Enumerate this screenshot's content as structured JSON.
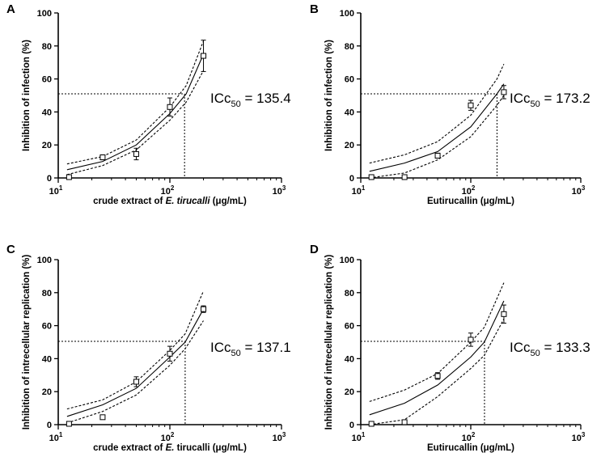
{
  "chart_data": [
    {
      "panel": "A",
      "type": "scatter",
      "xscale": "log",
      "xlim": [
        10,
        1000
      ],
      "ylim": [
        0,
        100
      ],
      "xticks": [
        {
          "value": 10,
          "exp": "1"
        },
        {
          "value": 100,
          "exp": "2"
        },
        {
          "value": 1000,
          "exp": "3"
        }
      ],
      "yticks": [
        0,
        20,
        40,
        60,
        80,
        100
      ],
      "xlabel": {
        "pre": "crude extract of ",
        "italic": "E. tirucalli",
        "post": " (μg/mL)"
      },
      "ylabel": "Inhibition of infection (%)",
      "points": [
        {
          "x": 12.5,
          "y": 0.5,
          "err": 0
        },
        {
          "x": 25,
          "y": 12.5,
          "err": 1.5
        },
        {
          "x": 50,
          "y": 14.5,
          "err": 3.5
        },
        {
          "x": 100,
          "y": 43,
          "err": 5.5
        },
        {
          "x": 200,
          "y": 74,
          "err": 9.5
        }
      ],
      "fit": [
        {
          "x": 12,
          "y": 5
        },
        {
          "x": 25,
          "y": 10
        },
        {
          "x": 50,
          "y": 20
        },
        {
          "x": 100,
          "y": 39
        },
        {
          "x": 140,
          "y": 51
        },
        {
          "x": 200,
          "y": 75
        }
      ],
      "ci_upper": [
        {
          "x": 12,
          "y": 8.5
        },
        {
          "x": 25,
          "y": 13
        },
        {
          "x": 50,
          "y": 23
        },
        {
          "x": 100,
          "y": 43
        },
        {
          "x": 140,
          "y": 56
        },
        {
          "x": 200,
          "y": 83
        }
      ],
      "ci_lower": [
        {
          "x": 12,
          "y": 2
        },
        {
          "x": 25,
          "y": 7.5
        },
        {
          "x": 50,
          "y": 17
        },
        {
          "x": 100,
          "y": 35
        },
        {
          "x": 140,
          "y": 46
        },
        {
          "x": 200,
          "y": 65
        }
      ],
      "ic50": {
        "x": 135.4,
        "y": 51,
        "label_main": "ICc",
        "label_sub": "50",
        "label_value": " = 135.4"
      }
    },
    {
      "panel": "B",
      "type": "scatter",
      "xscale": "log",
      "xlim": [
        10,
        1000
      ],
      "ylim": [
        0,
        100
      ],
      "xticks": [
        {
          "value": 10,
          "exp": "1"
        },
        {
          "value": 100,
          "exp": "2"
        },
        {
          "value": 1000,
          "exp": "3"
        }
      ],
      "yticks": [
        0,
        20,
        40,
        60,
        80,
        100
      ],
      "xlabel": {
        "pre": "Eutirucallin (μg/mL)",
        "italic": "",
        "post": ""
      },
      "ylabel": "Inhibition of infection (%)",
      "points": [
        {
          "x": 12.5,
          "y": 0.5,
          "err": 0
        },
        {
          "x": 25,
          "y": 0.5,
          "err": 0
        },
        {
          "x": 50,
          "y": 13.5,
          "err": 1.5
        },
        {
          "x": 100,
          "y": 44,
          "err": 3
        },
        {
          "x": 200,
          "y": 52,
          "err": 4
        }
      ],
      "fit": [
        {
          "x": 12,
          "y": 4
        },
        {
          "x": 25,
          "y": 9
        },
        {
          "x": 50,
          "y": 16
        },
        {
          "x": 100,
          "y": 31
        },
        {
          "x": 173,
          "y": 51
        },
        {
          "x": 200,
          "y": 57
        }
      ],
      "ci_upper": [
        {
          "x": 12,
          "y": 9
        },
        {
          "x": 25,
          "y": 14
        },
        {
          "x": 50,
          "y": 22
        },
        {
          "x": 100,
          "y": 38
        },
        {
          "x": 173,
          "y": 60
        },
        {
          "x": 200,
          "y": 69
        }
      ],
      "ci_lower": [
        {
          "x": 12,
          "y": 0
        },
        {
          "x": 25,
          "y": 3
        },
        {
          "x": 50,
          "y": 11
        },
        {
          "x": 100,
          "y": 25
        },
        {
          "x": 173,
          "y": 44
        },
        {
          "x": 200,
          "y": 50
        }
      ],
      "ic50": {
        "x": 173.2,
        "y": 51,
        "label_main": "ICc",
        "label_sub": "50",
        "label_value": " = 173.2"
      }
    },
    {
      "panel": "C",
      "type": "scatter",
      "xscale": "log",
      "xlim": [
        10,
        1000
      ],
      "ylim": [
        0,
        100
      ],
      "xticks": [
        {
          "value": 10,
          "exp": "1"
        },
        {
          "value": 100,
          "exp": "2"
        },
        {
          "value": 1000,
          "exp": "3"
        }
      ],
      "yticks": [
        0,
        20,
        40,
        60,
        80,
        100
      ],
      "xlabel": {
        "pre": "crude extract of ",
        "italic": "E.",
        "post": " tirucalli (μg/mL)"
      },
      "ylabel": "Inhibition of intrecellular replication (%)",
      "points": [
        {
          "x": 12.5,
          "y": 0.5,
          "err": 0
        },
        {
          "x": 25,
          "y": 4.5,
          "err": 1
        },
        {
          "x": 50,
          "y": 26,
          "err": 3
        },
        {
          "x": 100,
          "y": 43,
          "err": 4.5
        },
        {
          "x": 200,
          "y": 70,
          "err": 2
        }
      ],
      "fit": [
        {
          "x": 12,
          "y": 5
        },
        {
          "x": 25,
          "y": 12
        },
        {
          "x": 50,
          "y": 22
        },
        {
          "x": 100,
          "y": 41
        },
        {
          "x": 137,
          "y": 50
        },
        {
          "x": 200,
          "y": 70
        }
      ],
      "ci_upper": [
        {
          "x": 12,
          "y": 9.5
        },
        {
          "x": 25,
          "y": 15
        },
        {
          "x": 50,
          "y": 26
        },
        {
          "x": 100,
          "y": 45
        },
        {
          "x": 137,
          "y": 55
        },
        {
          "x": 200,
          "y": 81
        }
      ],
      "ci_lower": [
        {
          "x": 12,
          "y": 1
        },
        {
          "x": 25,
          "y": 8
        },
        {
          "x": 50,
          "y": 18
        },
        {
          "x": 100,
          "y": 36
        },
        {
          "x": 137,
          "y": 46
        },
        {
          "x": 200,
          "y": 63
        }
      ],
      "ic50": {
        "x": 137.1,
        "y": 50.5,
        "label_main": "ICc",
        "label_sub": "50",
        "label_value": " = 137.1"
      }
    },
    {
      "panel": "D",
      "type": "scatter",
      "xscale": "log",
      "xlim": [
        10,
        1000
      ],
      "ylim": [
        0,
        100
      ],
      "xticks": [
        {
          "value": 10,
          "exp": "1"
        },
        {
          "value": 100,
          "exp": "2"
        },
        {
          "value": 1000,
          "exp": "3"
        }
      ],
      "yticks": [
        0,
        20,
        40,
        60,
        80,
        100
      ],
      "xlabel": {
        "pre": "Eutirucallin (μg/mL)",
        "italic": "",
        "post": ""
      },
      "ylabel": "Inhibition of intrecellular replication (%)",
      "points": [
        {
          "x": 12.5,
          "y": 0.5,
          "err": 0
        },
        {
          "x": 25,
          "y": 1.5,
          "err": 1
        },
        {
          "x": 50,
          "y": 29.5,
          "err": 2
        },
        {
          "x": 100,
          "y": 51.5,
          "err": 4
        },
        {
          "x": 200,
          "y": 67,
          "err": 5.5
        }
      ],
      "fit": [
        {
          "x": 12,
          "y": 6
        },
        {
          "x": 25,
          "y": 13
        },
        {
          "x": 50,
          "y": 24
        },
        {
          "x": 100,
          "y": 41
        },
        {
          "x": 133,
          "y": 50
        },
        {
          "x": 200,
          "y": 75
        }
      ],
      "ci_upper": [
        {
          "x": 12,
          "y": 14
        },
        {
          "x": 25,
          "y": 21
        },
        {
          "x": 50,
          "y": 31
        },
        {
          "x": 100,
          "y": 50
        },
        {
          "x": 133,
          "y": 59
        },
        {
          "x": 200,
          "y": 86
        }
      ],
      "ci_lower": [
        {
          "x": 12,
          "y": 0
        },
        {
          "x": 25,
          "y": 3
        },
        {
          "x": 50,
          "y": 17
        },
        {
          "x": 100,
          "y": 34
        },
        {
          "x": 133,
          "y": 42
        },
        {
          "x": 200,
          "y": 64
        }
      ],
      "ic50": {
        "x": 133.3,
        "y": 50.5,
        "label_main": "ICc",
        "label_sub": "50",
        "label_value": " = 133.3"
      }
    }
  ]
}
